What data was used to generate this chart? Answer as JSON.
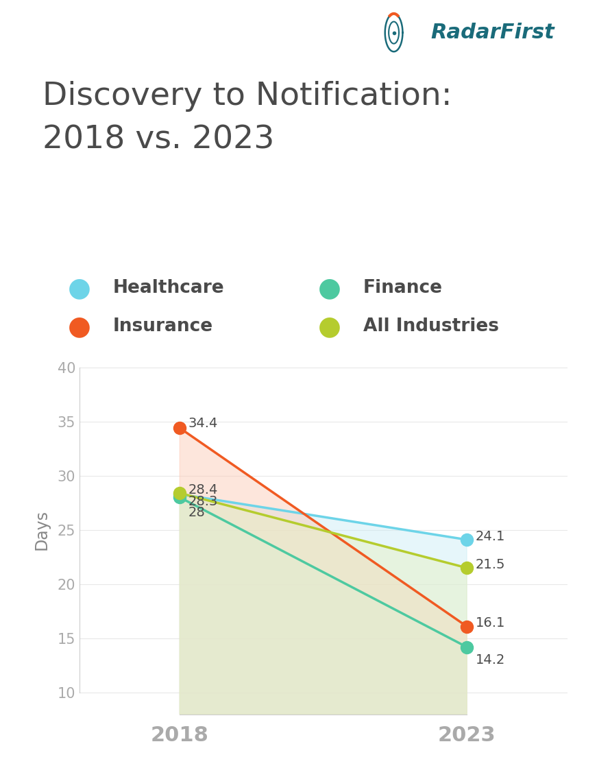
{
  "title_line1": "Discovery to Notification:",
  "title_line2": "2018 vs. 2023",
  "title_color": "#4a4a4a",
  "title_fontsize": 34,
  "ylabel": "Days",
  "ylabel_color": "#888888",
  "years": [
    0,
    1
  ],
  "year_labels": [
    "2018",
    "2023"
  ],
  "series": [
    {
      "name": "Healthcare",
      "values": [
        28.3,
        24.1
      ],
      "color": "#6dd4e8",
      "fill_color": "#c8ecf5",
      "fill_alpha": 0.45
    },
    {
      "name": "Insurance",
      "values": [
        34.4,
        16.1
      ],
      "color": "#f05a22",
      "fill_color": "#fcc8b2",
      "fill_alpha": 0.45
    },
    {
      "name": "Finance",
      "values": [
        28.0,
        14.2
      ],
      "color": "#4dc9a0",
      "fill_color": "#d0f0e4",
      "fill_alpha": 0.35
    },
    {
      "name": "All Industries",
      "values": [
        28.4,
        21.5
      ],
      "color": "#b5cc2e",
      "fill_color": "#e8f0c0",
      "fill_alpha": 0.45
    }
  ],
  "ylim": [
    8,
    42
  ],
  "xlim": [
    -0.35,
    1.35
  ],
  "yticks": [
    10,
    15,
    20,
    25,
    30,
    35,
    40
  ],
  "xtick_fontsize": 22,
  "ytick_fontsize": 15,
  "ytick_color": "#aaaaaa",
  "xtick_color": "#aaaaaa",
  "label_fontsize": 14,
  "legend_fontsize": 19,
  "axis_color": "#cccccc",
  "background_color": "#ffffff",
  "logo_color": "#1a6b7a",
  "marker_size": 13,
  "line_width": 2.5,
  "labels_2018": [
    {
      "name": "Insurance",
      "text": "34.4",
      "xoff": 0.03,
      "yoff": 0.4
    },
    {
      "name": "All Industries",
      "text": "28.4",
      "xoff": 0.03,
      "yoff": 0.3
    },
    {
      "name": "Healthcare",
      "text": "28.3",
      "xoff": 0.03,
      "yoff": -0.7
    },
    {
      "name": "Finance",
      "text": "28",
      "xoff": 0.03,
      "yoff": -1.4
    }
  ],
  "labels_2023": [
    {
      "name": "Healthcare",
      "text": "24.1",
      "xoff": 0.03,
      "yoff": 0.3
    },
    {
      "name": "All Industries",
      "text": "21.5",
      "xoff": 0.03,
      "yoff": 0.3
    },
    {
      "name": "Insurance",
      "text": "16.1",
      "xoff": 0.03,
      "yoff": 0.3
    },
    {
      "name": "Finance",
      "text": "14.2",
      "xoff": 0.03,
      "yoff": -1.2
    }
  ]
}
